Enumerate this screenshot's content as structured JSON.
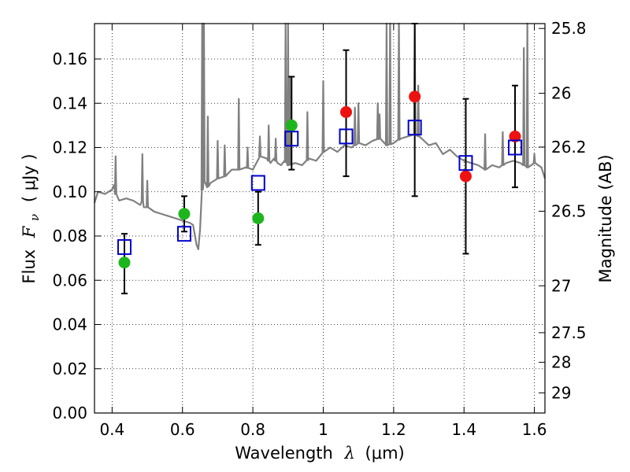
{
  "chart_data": {
    "type": "scatter",
    "xlabel_prefix": "Wavelength",
    "xlabel_symbol": "λ",
    "xlabel_units": "(μm)",
    "ylabel_prefix": "Flux",
    "ylabel_symbol": "F",
    "ylabel_subscript": "ν",
    "ylabel_units": "( μJy )",
    "y2label": "Magnitude (AB)",
    "xlim": [
      0.35,
      1.63
    ],
    "ylim": [
      0.0,
      0.176
    ],
    "x_ticks": [
      0.4,
      0.6,
      0.8,
      1.0,
      1.2,
      1.4,
      1.6
    ],
    "x_tick_labels": [
      "0.4",
      "0.6",
      "0.8",
      "1",
      "1.2",
      "1.4",
      "1.6"
    ],
    "y_ticks": [
      0.0,
      0.02,
      0.04,
      0.06,
      0.08,
      0.1,
      0.12,
      0.14,
      0.16
    ],
    "y_tick_labels": [
      "0.00",
      "0.02",
      "0.04",
      "0.06",
      "0.08",
      "0.10",
      "0.12",
      "0.14",
      "0.16"
    ],
    "y2_ticks": [
      {
        "label": "25.8",
        "flux": 0.1738
      },
      {
        "label": "26",
        "flux": 0.1445
      },
      {
        "label": "26.2",
        "flux": 0.1202
      },
      {
        "label": "26.5",
        "flux": 0.0912
      },
      {
        "label": "27",
        "flux": 0.0575
      },
      {
        "label": "27.5",
        "flux": 0.0363
      },
      {
        "label": "28",
        "flux": 0.0229
      },
      {
        "label": "29",
        "flux": 0.0091
      }
    ],
    "grid": true,
    "colors": {
      "spectrum": "#808080",
      "green_points": "#1db51d",
      "red_points": "#ee1111",
      "model_squares": "#0000cc",
      "errorbars": "#000000"
    },
    "spectrum": {
      "x": [
        0.35,
        0.36,
        0.38,
        0.4,
        0.405,
        0.41,
        0.42,
        0.44,
        0.46,
        0.48,
        0.485,
        0.49,
        0.5,
        0.52,
        0.54,
        0.56,
        0.58,
        0.6,
        0.62,
        0.63,
        0.64,
        0.645,
        0.65,
        0.655,
        0.66,
        0.67,
        0.68,
        0.7,
        0.72,
        0.74,
        0.76,
        0.78,
        0.8,
        0.82,
        0.84,
        0.85,
        0.86,
        0.87,
        0.88,
        0.89,
        0.9,
        0.92,
        0.94,
        0.96,
        0.98,
        1.0,
        1.02,
        1.04,
        1.06,
        1.08,
        1.1,
        1.12,
        1.14,
        1.16,
        1.18,
        1.2,
        1.22,
        1.24,
        1.26,
        1.28,
        1.3,
        1.32,
        1.34,
        1.36,
        1.38,
        1.4,
        1.42,
        1.44,
        1.46,
        1.48,
        1.5,
        1.52,
        1.54,
        1.56,
        1.58,
        1.6,
        1.62,
        1.63
      ],
      "y": [
        0.095,
        0.1,
        0.099,
        0.101,
        0.103,
        0.099,
        0.096,
        0.097,
        0.096,
        0.094,
        0.096,
        0.093,
        0.093,
        0.091,
        0.09,
        0.089,
        0.088,
        0.087,
        0.086,
        0.085,
        0.076,
        0.074,
        0.083,
        0.1,
        0.105,
        0.102,
        0.104,
        0.106,
        0.107,
        0.11,
        0.11,
        0.111,
        0.11,
        0.116,
        0.115,
        0.113,
        0.115,
        0.113,
        0.112,
        0.114,
        0.112,
        0.113,
        0.112,
        0.115,
        0.114,
        0.118,
        0.12,
        0.118,
        0.121,
        0.12,
        0.122,
        0.121,
        0.123,
        0.124,
        0.121,
        0.122,
        0.124,
        0.125,
        0.126,
        0.124,
        0.121,
        0.122,
        0.117,
        0.119,
        0.116,
        0.114,
        0.113,
        0.112,
        0.11,
        0.112,
        0.111,
        0.113,
        0.114,
        0.113,
        0.111,
        0.113,
        0.111,
        0.106
      ]
    },
    "spectrum_spikes": [
      {
        "x": 0.41,
        "y": 0.116
      },
      {
        "x": 0.486,
        "y": 0.117
      },
      {
        "x": 0.5,
        "y": 0.105
      },
      {
        "x": 0.656,
        "y": 0.176
      },
      {
        "x": 0.661,
        "y": 0.176
      },
      {
        "x": 0.672,
        "y": 0.134
      },
      {
        "x": 0.7,
        "y": 0.123
      },
      {
        "x": 0.72,
        "y": 0.121
      },
      {
        "x": 0.76,
        "y": 0.142
      },
      {
        "x": 0.785,
        "y": 0.12
      },
      {
        "x": 0.82,
        "y": 0.125
      },
      {
        "x": 0.845,
        "y": 0.13
      },
      {
        "x": 0.865,
        "y": 0.124
      },
      {
        "x": 0.893,
        "y": 0.176
      },
      {
        "x": 0.9,
        "y": 0.176
      },
      {
        "x": 0.905,
        "y": 0.152
      },
      {
        "x": 0.955,
        "y": 0.136
      },
      {
        "x": 1.0,
        "y": 0.15
      },
      {
        "x": 1.09,
        "y": 0.138
      },
      {
        "x": 1.1,
        "y": 0.14
      },
      {
        "x": 1.155,
        "y": 0.14
      },
      {
        "x": 1.16,
        "y": 0.135
      },
      {
        "x": 1.18,
        "y": 0.176
      },
      {
        "x": 1.19,
        "y": 0.176
      },
      {
        "x": 1.215,
        "y": 0.176
      },
      {
        "x": 1.26,
        "y": 0.176
      },
      {
        "x": 1.27,
        "y": 0.148
      },
      {
        "x": 1.46,
        "y": 0.126
      },
      {
        "x": 1.51,
        "y": 0.127
      },
      {
        "x": 1.57,
        "y": 0.165
      },
      {
        "x": 1.58,
        "y": 0.176
      },
      {
        "x": 1.6,
        "y": 0.117
      }
    ],
    "series": [
      {
        "marker": "circle",
        "color": "#1db51d",
        "points": [
          {
            "x": 0.435,
            "y": 0.068,
            "yerr_low": 0.054,
            "yerr_high": 0.081
          },
          {
            "x": 0.605,
            "y": 0.09,
            "yerr_low": 0.082,
            "yerr_high": 0.098
          },
          {
            "x": 0.815,
            "y": 0.088,
            "yerr_low": 0.076,
            "yerr_high": 0.1
          },
          {
            "x": 0.91,
            "y": 0.13,
            "yerr_low": 0.11,
            "yerr_high": 0.152
          }
        ]
      },
      {
        "marker": "circle",
        "color": "#ee1111",
        "points": [
          {
            "x": 1.065,
            "y": 0.136,
            "yerr_low": 0.107,
            "yerr_high": 0.164
          },
          {
            "x": 1.26,
            "y": 0.143,
            "yerr_low": 0.098,
            "yerr_high": 0.176
          },
          {
            "x": 1.405,
            "y": 0.107,
            "yerr_low": 0.072,
            "yerr_high": 0.142
          },
          {
            "x": 1.545,
            "y": 0.125,
            "yerr_low": 0.102,
            "yerr_high": 0.148
          }
        ]
      },
      {
        "marker": "open-square",
        "color": "#0000cc",
        "points": [
          {
            "x": 0.435,
            "y": 0.075
          },
          {
            "x": 0.605,
            "y": 0.081
          },
          {
            "x": 0.815,
            "y": 0.104
          },
          {
            "x": 0.91,
            "y": 0.124
          },
          {
            "x": 1.065,
            "y": 0.125
          },
          {
            "x": 1.26,
            "y": 0.129
          },
          {
            "x": 1.405,
            "y": 0.113
          },
          {
            "x": 1.545,
            "y": 0.12
          }
        ]
      }
    ]
  }
}
